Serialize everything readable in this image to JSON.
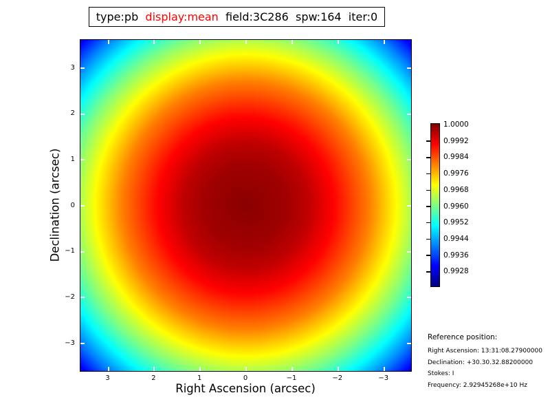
{
  "title": {
    "prefix": "type:pb  ",
    "highlight": "display:mean",
    "suffix": "  field:3C286  spw:164  iter:0",
    "highlight_color": "#ff0000"
  },
  "plot": {
    "x_axis": {
      "label": "Right Ascension (arcsec)",
      "ticks": [
        "3",
        "2",
        "1",
        "0",
        "−1",
        "−2",
        "−3"
      ]
    },
    "y_axis": {
      "label": "Declination (arcsec)",
      "ticks": [
        "3",
        "2",
        "1",
        "0",
        "−1",
        "−2",
        "−3"
      ]
    },
    "tick_color": "#ffffff",
    "border_color": "#000000"
  },
  "colorbar": {
    "labels": [
      "1.0000",
      "0.9992",
      "0.9984",
      "0.9976",
      "0.9968",
      "0.9960",
      "0.9952",
      "0.9944",
      "0.9936",
      "0.9928"
    ]
  },
  "reference": {
    "heading": "Reference position:",
    "lines": [
      "Right Ascension: 13:31:08.27900000",
      "Declination: +30.30.32.88200000",
      "Stokes: I",
      "Frequency: 2.92945268e+10 Hz"
    ]
  },
  "chart_data": {
    "type": "heatmap",
    "title": "type:pb  display:mean  field:3C286  spw:164  iter:0",
    "xlabel": "Right Ascension (arcsec)",
    "ylabel": "Declination (arcsec)",
    "xlim": [
      3.6,
      -3.6
    ],
    "ylim": [
      -3.6,
      3.6
    ],
    "x_ticks": [
      3,
      2,
      1,
      0,
      -1,
      -2,
      -3
    ],
    "y_ticks": [
      3,
      2,
      1,
      0,
      -1,
      -2,
      -3
    ],
    "colormap": "jet",
    "colormap_colors": [
      "#000080",
      "#0000ff",
      "#00ffff",
      "#80ff80",
      "#ffff00",
      "#ff8000",
      "#ff0000",
      "#800000"
    ],
    "value_range": [
      0.992,
      1.0
    ],
    "colorbar_ticks": [
      1.0,
      0.9992,
      0.9984,
      0.9976,
      0.9968,
      0.996,
      0.9952,
      0.9944,
      0.9936,
      0.9928
    ],
    "pattern": "radially symmetric primary-beam response, peak 1.0 at (0,0), decreasing outward",
    "radial_profile": [
      {
        "radius_arcsec": 0.0,
        "value": 1.0
      },
      {
        "radius_arcsec": 1.0,
        "value": 0.9997
      },
      {
        "radius_arcsec": 2.0,
        "value": 0.9988
      },
      {
        "radius_arcsec": 3.0,
        "value": 0.9973
      },
      {
        "radius_arcsec": 4.0,
        "value": 0.9952
      },
      {
        "radius_arcsec": 5.0,
        "value": 0.9925
      }
    ]
  }
}
